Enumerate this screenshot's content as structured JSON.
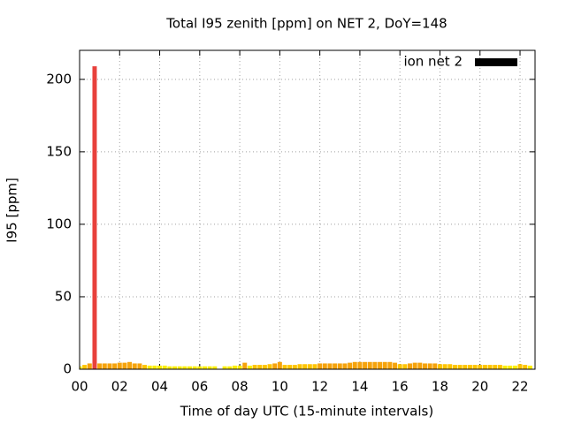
{
  "chart_data": {
    "type": "bar",
    "title": "Total I95 zenith [ppm] on NET 2, DoY=148",
    "x_label": "Time of day UTC (15-minute intervals)",
    "y_label": "I95 [ppm]",
    "x": [
      0,
      0.25,
      0.5,
      0.75,
      1,
      1.25,
      1.5,
      1.75,
      2,
      2.25,
      2.5,
      2.75,
      3,
      3.25,
      3.5,
      3.75,
      4,
      4.25,
      4.5,
      4.75,
      5,
      5.25,
      5.5,
      5.75,
      6,
      6.25,
      6.5,
      6.75,
      7,
      7.25,
      7.5,
      7.75,
      8,
      8.25,
      8.5,
      8.75,
      9,
      9.25,
      9.5,
      9.75,
      10,
      10.25,
      10.5,
      10.75,
      11,
      11.25,
      11.5,
      11.75,
      12,
      12.25,
      12.5,
      12.75,
      13,
      13.25,
      13.5,
      13.75,
      14,
      14.25,
      14.5,
      14.75,
      15,
      15.25,
      15.5,
      15.75,
      16,
      16.25,
      16.5,
      16.75,
      17,
      17.25,
      17.5,
      17.75,
      18,
      18.25,
      18.5,
      18.75,
      19,
      19.25,
      19.5,
      19.75,
      20,
      20.25,
      20.5,
      20.75,
      21,
      21.25,
      21.5,
      21.75,
      22,
      22.25,
      22.5
    ],
    "series": [
      {
        "name": "ion net 2",
        "color": "#000000",
        "values": [
          2,
          3,
          4,
          209,
          4,
          4,
          4,
          4,
          4.5,
          4.5,
          5,
          4,
          4,
          3,
          2.5,
          2.5,
          2.5,
          2.5,
          2,
          2,
          2,
          2,
          2,
          2,
          2,
          2,
          2,
          2,
          null,
          2,
          2,
          2.5,
          2.5,
          4.5,
          2.5,
          3,
          3,
          3,
          3.5,
          4,
          5,
          3,
          3,
          3,
          3.5,
          3.5,
          3.5,
          3.5,
          4,
          4,
          4,
          4,
          4,
          4,
          4.5,
          5,
          5,
          5,
          5,
          5,
          5,
          5,
          5,
          4.5,
          3.5,
          3.5,
          4,
          4.5,
          4.5,
          4,
          4,
          4,
          3.5,
          3.5,
          3.5,
          3,
          3,
          3,
          3,
          3,
          3,
          3,
          3,
          3,
          3,
          2.5,
          2.5,
          2.5,
          3.5,
          3,
          2.5
        ],
        "colors": [
          "#ffee00",
          "#ffc400",
          "#f5a30c",
          "#e8413c",
          "#f5a30c",
          "#f5a30c",
          "#f5a30c",
          "#f5a30c",
          "#f5a30c",
          "#f5a30c",
          "#f5a30c",
          "#f5a30c",
          "#f5a30c",
          "#ffc400",
          "#ffee00",
          "#ffee00",
          "#ffee00",
          "#ffee00",
          "#ffee00",
          "#ffee00",
          "#ffee00",
          "#ffee00",
          "#ffee00",
          "#ffee00",
          "#ffee00",
          "#ffee00",
          "#ffee00",
          "#ffee00",
          null,
          "#ffee00",
          "#ffee00",
          "#ffee00",
          "#ffee00",
          "#f5a30c",
          "#ffee00",
          "#ffc400",
          "#ffc400",
          "#ffc400",
          "#ffc400",
          "#f5a30c",
          "#f5a30c",
          "#ffc400",
          "#ffc400",
          "#ffc400",
          "#ffc400",
          "#ffc400",
          "#ffc400",
          "#ffc400",
          "#f5a30c",
          "#f5a30c",
          "#f5a30c",
          "#f5a30c",
          "#f5a30c",
          "#f5a30c",
          "#f5a30c",
          "#f5a30c",
          "#f5a30c",
          "#f5a30c",
          "#f5a30c",
          "#f5a30c",
          "#f5a30c",
          "#f5a30c",
          "#f5a30c",
          "#f5a30c",
          "#ffc400",
          "#ffc400",
          "#f5a30c",
          "#f5a30c",
          "#f5a30c",
          "#f5a30c",
          "#f5a30c",
          "#f5a30c",
          "#ffc400",
          "#ffc400",
          "#ffc400",
          "#ffc400",
          "#ffc400",
          "#ffc400",
          "#ffc400",
          "#ffc400",
          "#ffc400",
          "#ffc400",
          "#ffc400",
          "#ffc400",
          "#ffc400",
          "#ffee00",
          "#ffee00",
          "#ffee00",
          "#ffc400",
          "#ffc400",
          "#ffee00"
        ]
      }
    ],
    "xlim": [
      0,
      22.75
    ],
    "xticks": [
      {
        "value": 0,
        "label": "00"
      },
      {
        "value": 2,
        "label": "02"
      },
      {
        "value": 4,
        "label": "04"
      },
      {
        "value": 6,
        "label": "06"
      },
      {
        "value": 8,
        "label": "08"
      },
      {
        "value": 10,
        "label": "10"
      },
      {
        "value": 12,
        "label": "12"
      },
      {
        "value": 14,
        "label": "14"
      },
      {
        "value": 16,
        "label": "16"
      },
      {
        "value": 18,
        "label": "18"
      },
      {
        "value": 20,
        "label": "20"
      },
      {
        "value": 22,
        "label": "22"
      }
    ],
    "ylim": [
      0,
      220
    ],
    "yticks": [
      0,
      50,
      100,
      150,
      200
    ],
    "grid": true,
    "legend": "top-right"
  }
}
